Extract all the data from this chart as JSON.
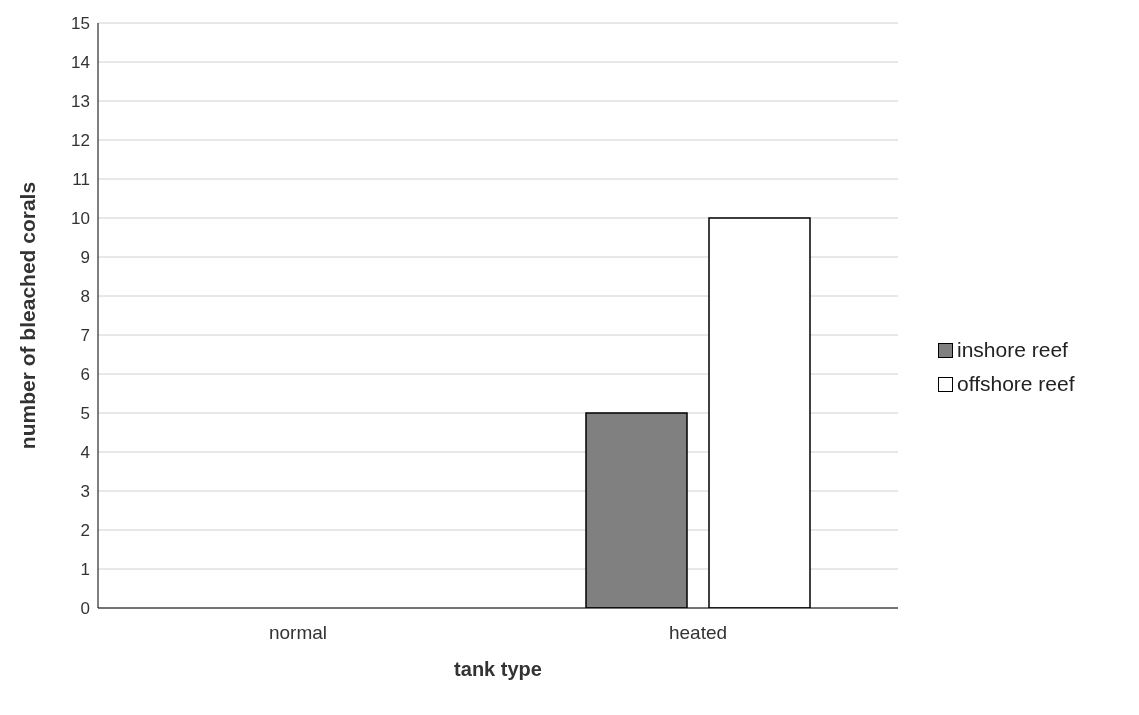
{
  "chart_data": {
    "type": "bar",
    "xlabel": "tank type",
    "ylabel": "number of bleached corals",
    "categories": [
      "normal",
      "heated"
    ],
    "series": [
      {
        "name": "inshore reef",
        "color": "#808080",
        "values": [
          0,
          5
        ]
      },
      {
        "name": "offshore reef",
        "color": "#ffffff",
        "values": [
          0,
          10
        ]
      }
    ],
    "ylim": [
      0,
      15
    ],
    "yticks": [
      0,
      1,
      2,
      3,
      4,
      5,
      6,
      7,
      8,
      9,
      10,
      11,
      12,
      13,
      14,
      15
    ],
    "grid": "y",
    "legend": "right"
  }
}
